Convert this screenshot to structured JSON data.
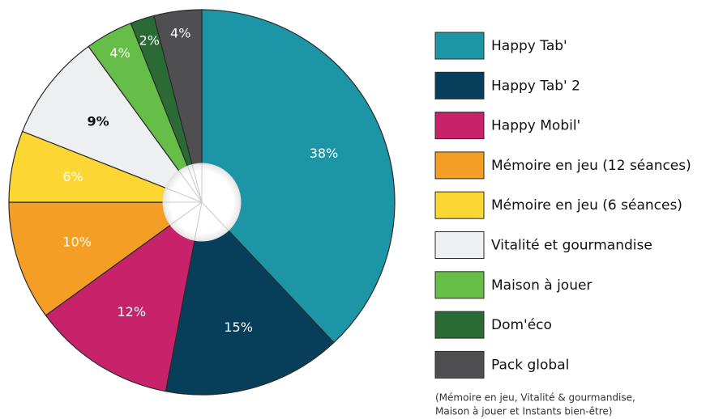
{
  "chart_data": {
    "type": "pie",
    "categories": [
      "Happy Tab'",
      "Happy Tab' 2",
      "Happy Mobil'",
      "Mémoire en jeu (12 séances)",
      "Mémoire en jeu (6 séances)",
      "Vitalité et gourmandise",
      "Maison à jouer",
      "Dom'éco",
      "Pack global"
    ],
    "values": [
      38,
      15,
      12,
      10,
      6,
      9,
      4,
      2,
      4
    ],
    "value_labels": [
      "38%",
      "15%",
      "12%",
      "10%",
      "6%",
      "9%",
      "4%",
      "2%",
      "4%"
    ],
    "colors": [
      "#1c96a6",
      "#073f5b",
      "#c8236a",
      "#f59e25",
      "#fcd633",
      "#eeeff1",
      "#66bd47",
      "#2a6a35",
      "#4f4f51"
    ],
    "note": [
      "(Mémoire en jeu, Vitalité & gourmandise,",
      "Maison à jouer et Instants bien-être)"
    ]
  }
}
